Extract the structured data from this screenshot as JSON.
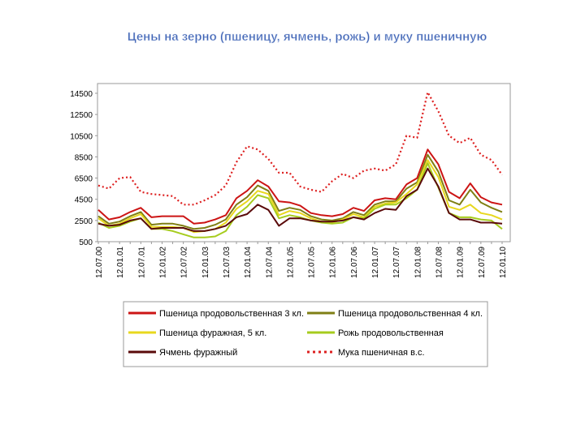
{
  "chart_data": {
    "type": "line",
    "title": "Цены на зерно (пшеницу, ячмень, рожь) и муку пшеничную",
    "categories": [
      "12.07.00",
      null,
      "12.01.01",
      null,
      "12.07.01",
      null,
      "12.01.02",
      null,
      "12.07.02",
      null,
      "12.01.03",
      null,
      "12.07.03",
      null,
      "12.01.04",
      null,
      "12.07.04",
      null,
      "12.01.05",
      null,
      "12.07.05",
      null,
      "12.01.06",
      null,
      "12.07.06",
      null,
      "12.01.07",
      null,
      "12.07.07",
      null,
      "12.01.08",
      null,
      "12.07.08",
      null,
      "12.01.09",
      null,
      "12.07.09",
      null,
      "12.01.10"
    ],
    "ylim": [
      500,
      14500
    ],
    "yticks": [
      500,
      2500,
      4500,
      6500,
      8500,
      10500,
      12500,
      14500
    ],
    "series": [
      {
        "name": "Пшеница продовольственная 3 кл.",
        "color": "#cc1414",
        "style": "solid",
        "values": [
          3500,
          2600,
          2800,
          3300,
          3700,
          2800,
          2900,
          2900,
          2900,
          2200,
          2300,
          2600,
          3000,
          4600,
          5300,
          6300,
          5700,
          4300,
          4200,
          3900,
          3200,
          3000,
          2900,
          3100,
          3700,
          3400,
          4400,
          4600,
          4500,
          5900,
          6500,
          9200,
          7800,
          5200,
          4600,
          6000,
          4700,
          4200,
          4000
        ]
      },
      {
        "name": "Пшеница продовольственная 4 кл.",
        "color": "#7f7f14",
        "style": "solid",
        "values": [
          2900,
          2200,
          2400,
          2900,
          3300,
          2100,
          2200,
          2200,
          2000,
          1700,
          1800,
          2100,
          2600,
          4000,
          4700,
          5800,
          5300,
          3400,
          3700,
          3500,
          2900,
          2600,
          2500,
          2700,
          3300,
          3000,
          4000,
          4300,
          4300,
          5500,
          6100,
          8700,
          7100,
          4400,
          4000,
          5400,
          4200,
          3700,
          3300
        ]
      },
      {
        "name": "Пшеница фуражная, 5 кл.",
        "color": "#e8d81e",
        "style": "solid",
        "values": [
          2700,
          2000,
          2200,
          2700,
          3100,
          1900,
          1900,
          1900,
          1800,
          1400,
          1500,
          1700,
          2300,
          3600,
          4300,
          5300,
          5000,
          3000,
          3400,
          3200,
          2700,
          2400,
          2300,
          2600,
          3100,
          2800,
          3800,
          4100,
          4200,
          5000,
          5900,
          8200,
          6600,
          3800,
          3500,
          4000,
          3200,
          3000,
          2600
        ]
      },
      {
        "name": "Рожь продовольственная",
        "color": "#a6cc1e",
        "style": "solid",
        "values": [
          2300,
          1800,
          2000,
          2400,
          2700,
          1700,
          1700,
          1500,
          1200,
          900,
          900,
          1000,
          1500,
          3000,
          3800,
          4900,
          4600,
          2700,
          3000,
          2800,
          2500,
          2300,
          2200,
          2300,
          2800,
          2700,
          3600,
          4000,
          4000,
          4600,
          5400,
          7900,
          5600,
          3200,
          2800,
          2800,
          2600,
          2500,
          1700
        ]
      },
      {
        "name": "Ячмень фуражный",
        "color": "#5a0a0a",
        "style": "solid",
        "values": [
          2200,
          2000,
          2100,
          2500,
          2700,
          1700,
          1800,
          1800,
          1800,
          1500,
          1500,
          1700,
          2000,
          2800,
          3100,
          4000,
          3500,
          2000,
          2700,
          2700,
          2500,
          2400,
          2400,
          2500,
          2800,
          2600,
          3200,
          3600,
          3500,
          4800,
          5400,
          7400,
          5700,
          3200,
          2600,
          2600,
          2300,
          2300,
          2200
        ]
      },
      {
        "name": "Мука пшеничная в.с.",
        "color": "#dd2020",
        "style": "dotted",
        "values": [
          5800,
          5500,
          6500,
          6600,
          5200,
          5000,
          4900,
          4800,
          4000,
          4000,
          4400,
          4900,
          5800,
          8000,
          9500,
          9200,
          8300,
          7000,
          7000,
          5700,
          5400,
          5200,
          6200,
          6900,
          6500,
          7200,
          7400,
          7200,
          7800,
          10500,
          10300,
          14600,
          12800,
          10500,
          9800,
          10300,
          8700,
          8200,
          6800
        ]
      }
    ]
  }
}
